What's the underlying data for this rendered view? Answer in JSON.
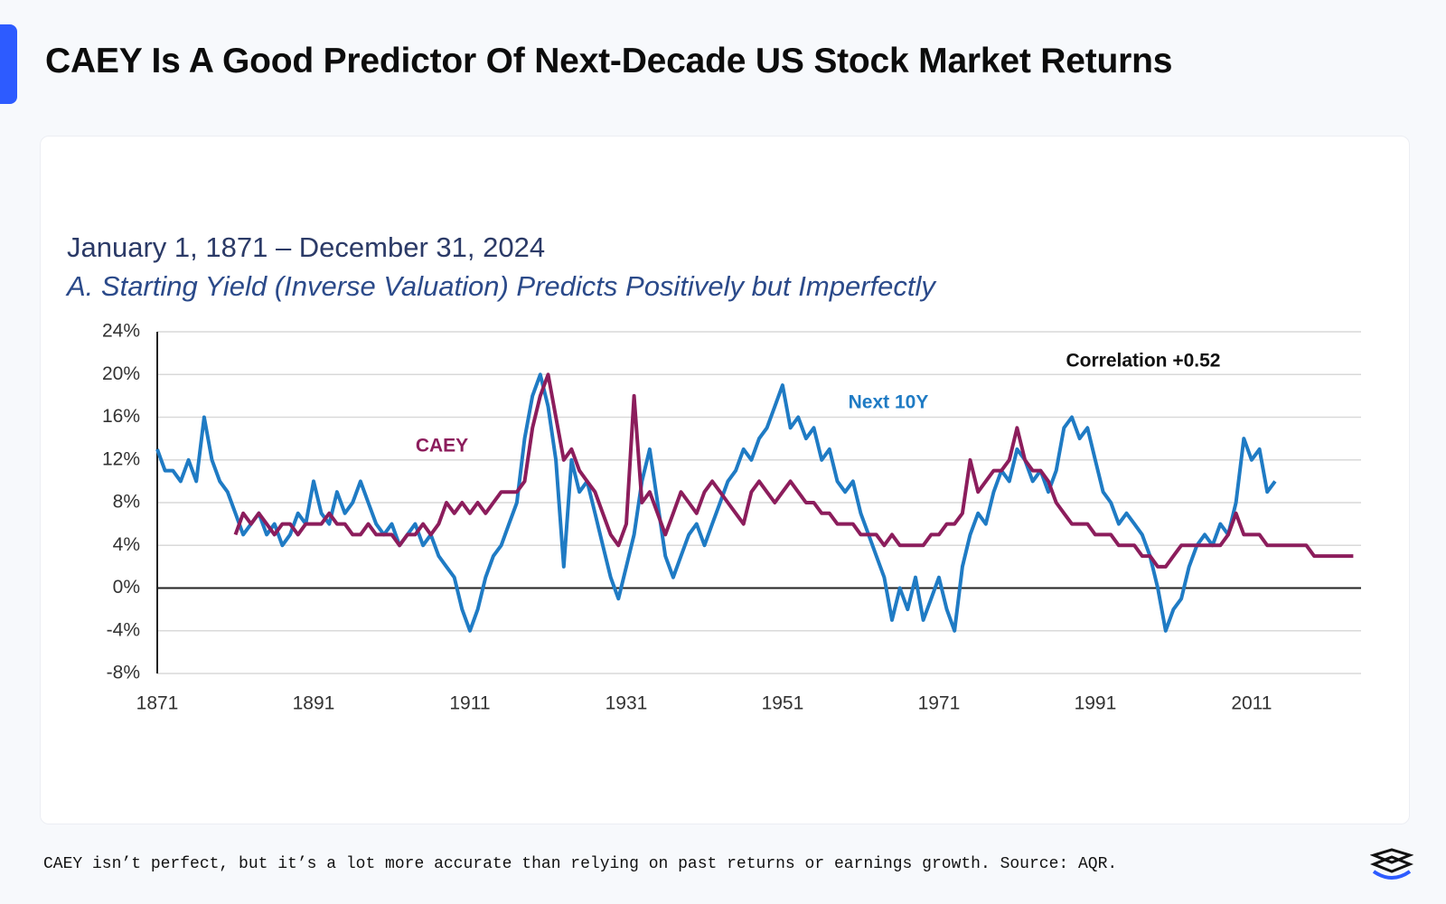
{
  "header": {
    "title": "CAEY Is A Good Predictor Of Next-Decade US Stock Market Returns"
  },
  "caption": "CAEY isn’t perfect, but it’s a lot more accurate than relying on past returns or earnings growth. Source: AQR.",
  "chart_data": {
    "type": "line",
    "title": "January 1, 1871 – December 31, 2024",
    "subtitle": "A. Starting Yield (Inverse Valuation) Predicts Positively but Imperfectly",
    "annotations": [
      "Correlation +0.52"
    ],
    "x": [
      1871,
      1872,
      1873,
      1874,
      1875,
      1876,
      1877,
      1878,
      1879,
      1880,
      1881,
      1882,
      1883,
      1884,
      1885,
      1886,
      1887,
      1888,
      1889,
      1890,
      1891,
      1892,
      1893,
      1894,
      1895,
      1896,
      1897,
      1898,
      1899,
      1900,
      1901,
      1902,
      1903,
      1904,
      1905,
      1906,
      1907,
      1908,
      1909,
      1910,
      1911,
      1912,
      1913,
      1914,
      1915,
      1916,
      1917,
      1918,
      1919,
      1920,
      1921,
      1922,
      1923,
      1924,
      1925,
      1926,
      1927,
      1928,
      1929,
      1930,
      1931,
      1932,
      1933,
      1934,
      1935,
      1936,
      1937,
      1938,
      1939,
      1940,
      1941,
      1942,
      1943,
      1944,
      1945,
      1946,
      1947,
      1948,
      1949,
      1950,
      1951,
      1952,
      1953,
      1954,
      1955,
      1956,
      1957,
      1958,
      1959,
      1960,
      1961,
      1962,
      1963,
      1964,
      1965,
      1966,
      1967,
      1968,
      1969,
      1970,
      1971,
      1972,
      1973,
      1974,
      1975,
      1976,
      1977,
      1978,
      1979,
      1980,
      1981,
      1982,
      1983,
      1984,
      1985,
      1986,
      1987,
      1988,
      1989,
      1990,
      1991,
      1992,
      1993,
      1994,
      1995,
      1996,
      1997,
      1998,
      1999,
      2000,
      2001,
      2002,
      2003,
      2004,
      2005,
      2006,
      2007,
      2008,
      2009,
      2010,
      2011,
      2012,
      2013,
      2014,
      2015,
      2016,
      2017,
      2018,
      2019,
      2020,
      2021,
      2022,
      2023,
      2024
    ],
    "series": [
      {
        "name": "Next 10Y",
        "color": "#1f7bc4",
        "values": [
          13,
          11,
          11,
          10,
          12,
          10,
          16,
          12,
          10,
          9,
          7,
          5,
          6,
          7,
          5,
          6,
          4,
          5,
          7,
          6,
          10,
          7,
          6,
          9,
          7,
          8,
          10,
          8,
          6,
          5,
          6,
          4,
          5,
          6,
          4,
          5,
          3,
          2,
          1,
          -2,
          -4,
          -2,
          1,
          3,
          4,
          6,
          8,
          14,
          18,
          20,
          17,
          12,
          2,
          12,
          9,
          10,
          7,
          4,
          1,
          -1,
          2,
          5,
          10,
          13,
          8,
          3,
          1,
          3,
          5,
          6,
          4,
          6,
          8,
          10,
          11,
          13,
          12,
          14,
          15,
          17,
          19,
          15,
          16,
          14,
          15,
          12,
          13,
          10,
          9,
          10,
          7,
          5,
          3,
          1,
          -3,
          0,
          -2,
          1,
          -3,
          -1,
          1,
          -2,
          -4,
          2,
          5,
          7,
          6,
          9,
          11,
          10,
          13,
          12,
          10,
          11,
          9,
          11,
          15,
          16,
          14,
          15,
          12,
          9,
          8,
          6,
          7,
          6,
          5,
          3,
          0,
          -4,
          -2,
          -1,
          2,
          4,
          5,
          4,
          6,
          5,
          8,
          14,
          12,
          13,
          9,
          10,
          null,
          null,
          null,
          null,
          null,
          null,
          null,
          null,
          null,
          null
        ]
      },
      {
        "name": "CAEY",
        "color": "#8c1d5c",
        "values": [
          null,
          null,
          null,
          null,
          null,
          null,
          null,
          null,
          null,
          null,
          5,
          7,
          6,
          7,
          6,
          5,
          6,
          6,
          5,
          6,
          6,
          6,
          7,
          6,
          6,
          5,
          5,
          6,
          5,
          5,
          5,
          4,
          5,
          5,
          6,
          5,
          6,
          8,
          7,
          8,
          7,
          8,
          7,
          8,
          9,
          9,
          9,
          10,
          15,
          18,
          20,
          16,
          12,
          13,
          11,
          10,
          9,
          7,
          5,
          4,
          6,
          18,
          8,
          9,
          7,
          5,
          7,
          9,
          8,
          7,
          9,
          10,
          9,
          8,
          7,
          6,
          9,
          10,
          9,
          8,
          9,
          10,
          9,
          8,
          8,
          7,
          7,
          6,
          6,
          6,
          5,
          5,
          5,
          4,
          5,
          4,
          4,
          4,
          4,
          5,
          5,
          6,
          6,
          7,
          12,
          9,
          10,
          11,
          11,
          12,
          15,
          12,
          11,
          11,
          10,
          8,
          7,
          6,
          6,
          6,
          5,
          5,
          5,
          4,
          4,
          4,
          3,
          3,
          2,
          2,
          3,
          4,
          4,
          4,
          4,
          4,
          4,
          5,
          7,
          5,
          5,
          5,
          4,
          4,
          4,
          4,
          4,
          4,
          3,
          3,
          3,
          3,
          3,
          3
        ]
      }
    ],
    "xlim": [
      1871,
      2025
    ],
    "xticks": [
      1871,
      1891,
      1911,
      1931,
      1951,
      1971,
      1991,
      2011
    ],
    "ylim": [
      -8,
      24
    ],
    "yticks": [
      {
        "value": -8,
        "label": "-8%"
      },
      {
        "value": -4,
        "label": "-4%"
      },
      {
        "value": 0,
        "label": "0%"
      },
      {
        "value": 4,
        "label": "4%"
      },
      {
        "value": 8,
        "label": "8%"
      },
      {
        "value": 12,
        "label": "12%"
      },
      {
        "value": 16,
        "label": "16%"
      },
      {
        "value": 20,
        "label": "20%"
      },
      {
        "value": 24,
        "label": "24%"
      }
    ],
    "grid": true
  }
}
